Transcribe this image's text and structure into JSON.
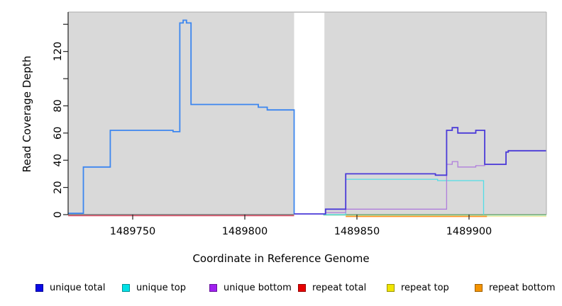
{
  "chart_data": {
    "type": "line",
    "title": "",
    "xlabel": "Coordinate in Reference Genome",
    "ylabel": "Read Coverage Depth",
    "xlim": [
      1489721.2,
      1489934.5
    ],
    "ylim": [
      0,
      149
    ],
    "grid": false,
    "panel_background": "#d9d9d9",
    "x_ticks": [
      1489750,
      1489800,
      1489850,
      1489900
    ],
    "y_ticks": [
      {
        "v": 0,
        "label": "0"
      },
      {
        "v": 20,
        "label": "20"
      },
      {
        "v": 40,
        "label": "40"
      },
      {
        "v": 60,
        "label": "60"
      },
      {
        "v": 80,
        "label": "80"
      },
      {
        "v": 100,
        "label": ""
      },
      {
        "v": 120,
        "label": "120"
      },
      {
        "v": 140,
        "label": ""
      }
    ],
    "masked_region": {
      "x_start": 1489822,
      "x_end": 1489835.5,
      "color": "#ffffff"
    },
    "series": [
      {
        "id": "overlap-top-zero",
        "name": "unique top + repeat top at zero (renders green)",
        "colors": [
          {
            "x_end": 1489934.5,
            "color": "#79c57e"
          }
        ],
        "width": 1.4,
        "offset": 0.5,
        "points": [
          [
            1489835,
            0
          ]
        ],
        "x_end": 1489934.5
      },
      {
        "id": "repeat-top",
        "name": "repeat top",
        "colors": [
          {
            "x_end": 1489934.5,
            "color": "#efe9a0"
          }
        ],
        "width": 1.2,
        "offset": 2.5,
        "points": [
          [
            1489908,
            0
          ]
        ],
        "x_end": 1489934.5
      },
      {
        "id": "repeat-bottom",
        "name": "repeat bottom",
        "colors": [
          {
            "x_end": 1489934.5,
            "color": "#fe9320"
          }
        ],
        "width": 1.8,
        "offset": 2.5,
        "points": [
          [
            1489845,
            0
          ]
        ],
        "x_end": 1489908
      },
      {
        "id": "repeat-total",
        "name": "repeat total",
        "colors": [
          {
            "x_end": 1489822,
            "color": "#e25068"
          }
        ],
        "width": 1.4,
        "offset": 1.5,
        "points": [
          [
            1489721.2,
            0
          ]
        ],
        "x_end": 1489822
      },
      {
        "id": "unique-top",
        "name": "unique top",
        "colors": [
          {
            "x_end": 1489906.5,
            "color": "#52dde6"
          }
        ],
        "width": 1.3,
        "offset": 0,
        "points": [
          [
            1489835,
            0
          ],
          [
            1489845,
            26
          ],
          [
            1489886,
            25
          ],
          [
            1489906.5,
            0
          ]
        ],
        "x_end": 1489906.5
      },
      {
        "id": "unique-bottom",
        "name": "unique bottom",
        "colors": [
          {
            "x_end": 1489934.5,
            "color": "#b07edc"
          }
        ],
        "width": 1.3,
        "offset": 0,
        "points": [
          [
            1489836,
            1.5
          ],
          [
            1489845,
            4
          ],
          [
            1489890,
            37
          ],
          [
            1489892.5,
            39
          ],
          [
            1489895,
            35
          ],
          [
            1489903,
            36
          ],
          [
            1489907,
            37
          ],
          [
            1489916.5,
            46
          ],
          [
            1489917.5,
            47
          ]
        ],
        "x_end": 1489934.5
      },
      {
        "id": "unique-total",
        "name": "unique total",
        "colors": [
          {
            "x_end": 1489822,
            "color": "#3c86ef"
          },
          {
            "x_end": 1489934.5,
            "color": "#4a3ad8"
          }
        ],
        "width": 1.8,
        "offset": 0,
        "points": [
          [
            1489721.2,
            1
          ],
          [
            1489728,
            35
          ],
          [
            1489740,
            62
          ],
          [
            1489768,
            61
          ],
          [
            1489771,
            141
          ],
          [
            1489772.5,
            143
          ],
          [
            1489774,
            141
          ],
          [
            1489776,
            81
          ],
          [
            1489806,
            79
          ],
          [
            1489810,
            77
          ],
          [
            1489822,
            0.5
          ],
          [
            1489836,
            4
          ],
          [
            1489845,
            30
          ],
          [
            1489885,
            29
          ],
          [
            1489890,
            62
          ],
          [
            1489892.5,
            64
          ],
          [
            1489895,
            60
          ],
          [
            1489903,
            62
          ],
          [
            1489907,
            37
          ],
          [
            1489916.5,
            46
          ],
          [
            1489917.5,
            47
          ]
        ],
        "x_end": 1489934.5
      }
    ]
  },
  "legend": {
    "items": [
      {
        "label": "unique total",
        "color": "#0a0ae6"
      },
      {
        "label": "unique top",
        "color": "#00e1e6"
      },
      {
        "label": "unique bottom",
        "color": "#a020f0"
      },
      {
        "label": "repeat total",
        "color": "#e60000"
      },
      {
        "label": "repeat top",
        "color": "#f0e500"
      },
      {
        "label": "repeat bottom",
        "color": "#f59400"
      }
    ]
  }
}
